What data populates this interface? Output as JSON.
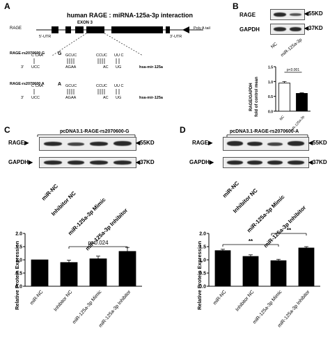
{
  "panelA": {
    "label": "A",
    "title": "human RAGE : miRNA-125a-3p interaction",
    "gene": "RAGE",
    "exon": "EXON 3",
    "utr5": "5'-UTR",
    "utr3": "3'-UTR",
    "polyA": "Poly A tail",
    "alleleG": {
      "name": "RAGE-rs2070600 G",
      "top_left": "C  CAA",
      "top_mid": "GCUC",
      "top_right": "CCUC",
      "top_end": "UU  C",
      "mut": "G",
      "bot_left": "UCC",
      "bot_mid": "AGAA",
      "bot_right": "AC",
      "bot_end": "UG",
      "prime5": "5'",
      "prime3": "3'",
      "mirna": "hsa-mir-125a"
    },
    "alleleA": {
      "name": "RAGE-rs2070600 A",
      "top_left": "C  CAA",
      "top_mid": "GCUC",
      "top_right": "CCUC",
      "top_end": "UU  C",
      "mut": "A",
      "bot_left": "UCC",
      "bot_mid": "AGAA",
      "bot_right": "AC",
      "bot_end": "UG",
      "prime5": "5'",
      "prime3": "3'",
      "mirna": "hsa-mir-125a"
    }
  },
  "panelB": {
    "label": "B",
    "blot_rows": [
      "RAGE",
      "GAPDH"
    ],
    "sizes": [
      "55KD",
      "37KD"
    ],
    "lanes": [
      "NC",
      "miR-125a-3p"
    ],
    "ylabel_line1": "RAGE/GAPDH",
    "ylabel_line2": "fold of control mean",
    "pvalue": "p<0.001",
    "yticks": [
      "0.0",
      "0.5",
      "1.0",
      "1.5"
    ]
  },
  "panelC": {
    "label": "C",
    "construct": "pcDNA3.1-RAGE-rs2070600-G",
    "blot_rows": [
      "RAGE",
      "GAPDH"
    ],
    "sizes": [
      "55KD",
      "37KD"
    ],
    "lanes": [
      "miR-NC",
      "Inhibitor NC",
      "miR-125a-3p Mimic",
      "miR-125a-3p Inhibitor"
    ],
    "pvalue": "p=0.024",
    "ylabel": "Relative Protein Expression",
    "yticks": [
      "0.0",
      "0.5",
      "1.0",
      "1.5",
      "2.0"
    ]
  },
  "panelD": {
    "label": "D",
    "construct": "pcDNA3.1-RAGE-rs2070600-A",
    "blot_rows": [
      "RAGE",
      "GAPDH"
    ],
    "sizes": [
      "55KD",
      "37KD"
    ],
    "lanes": [
      "miR-NC",
      "Inhibitor NC",
      "miR-125a-3p Mimic",
      "miR-125a-3p Inhibitor"
    ],
    "sig1": "**",
    "sig2": "**",
    "ylabel": "Relative Protein Expression",
    "yticks": [
      "0.0",
      "0.5",
      "1.0",
      "1.5",
      "2.0"
    ]
  },
  "chart_data": [
    {
      "type": "bar",
      "panel": "B",
      "categories": [
        "NC",
        "miR-125a-3p"
      ],
      "values": [
        0.95,
        0.6
      ],
      "errors": [
        0.05,
        0.02
      ],
      "fills": [
        "#ffffff",
        "#000000"
      ],
      "ylabel": "RAGE/GAPDH fold of control mean",
      "ylim": [
        0,
        1.5
      ],
      "yticks": [
        0,
        0.5,
        1.0,
        1.5
      ]
    },
    {
      "type": "bar",
      "panel": "C",
      "categories": [
        "miR-NC",
        "Inhibitor NC",
        "miR-125a-3p Mimic",
        "miR-125a-3p Inhibitor"
      ],
      "values": [
        1.0,
        0.9,
        1.04,
        1.32
      ],
      "errors": [
        0.0,
        0.09,
        0.1,
        0.15
      ],
      "fill": "#000000",
      "ylabel": "Relative Protein Expression",
      "ylim": [
        0,
        2.0
      ],
      "yticks": [
        0,
        0.5,
        1.0,
        1.5,
        2.0
      ]
    },
    {
      "type": "bar",
      "panel": "D",
      "categories": [
        "miR-NC",
        "Inhibitor NC",
        "miR-125a-3p Mimic",
        "miR-125a-3p Inhibitor"
      ],
      "values": [
        1.35,
        1.13,
        0.97,
        1.45
      ],
      "errors": [
        0.05,
        0.06,
        0.05,
        0.05
      ],
      "fill": "#000000",
      "ylabel": "Relative Protein Expression",
      "ylim": [
        0,
        2.0
      ],
      "yticks": [
        0,
        0.5,
        1.0,
        1.5,
        2.0
      ]
    }
  ]
}
